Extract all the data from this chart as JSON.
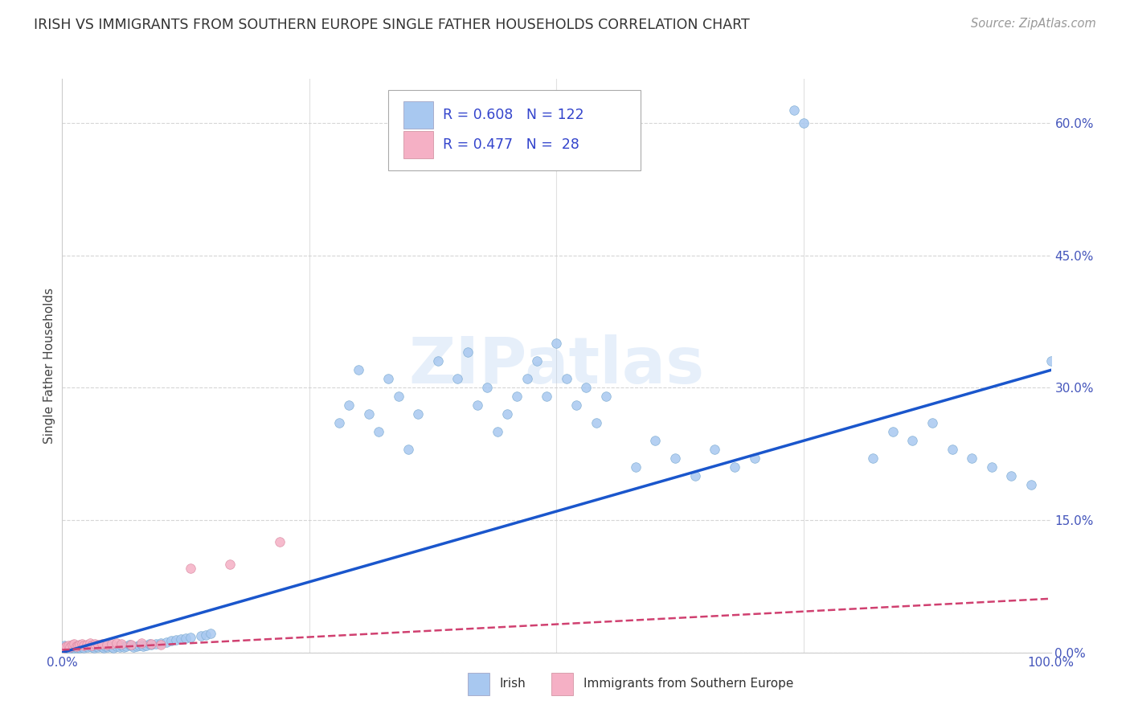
{
  "title": "IRISH VS IMMIGRANTS FROM SOUTHERN EUROPE SINGLE FATHER HOUSEHOLDS CORRELATION CHART",
  "source": "Source: ZipAtlas.com",
  "ylabel": "Single Father Households",
  "yticks": [
    "0.0%",
    "15.0%",
    "30.0%",
    "45.0%",
    "60.0%"
  ],
  "ytick_vals": [
    0.0,
    0.15,
    0.3,
    0.45,
    0.6
  ],
  "xlim": [
    0.0,
    1.0
  ],
  "ylim": [
    0.0,
    0.65
  ],
  "irish_R": 0.608,
  "irish_N": 122,
  "southern_europe_R": 0.477,
  "southern_europe_N": 28,
  "irish_color": "#a8c8f0",
  "irish_edge_color": "#7aaad0",
  "irish_line_color": "#1a56cc",
  "southern_europe_color": "#f5b0c5",
  "southern_europe_edge_color": "#d888a0",
  "southern_europe_line_color": "#d04070",
  "watermark": "ZIPatlas",
  "legend_label_irish": "Irish",
  "legend_label_se": "Immigrants from Southern Europe",
  "grid_color": "#cccccc",
  "background_color": "#ffffff",
  "irish_slope": 0.32,
  "irish_intercept": 0.0,
  "se_slope": 0.058,
  "se_intercept": 0.003
}
